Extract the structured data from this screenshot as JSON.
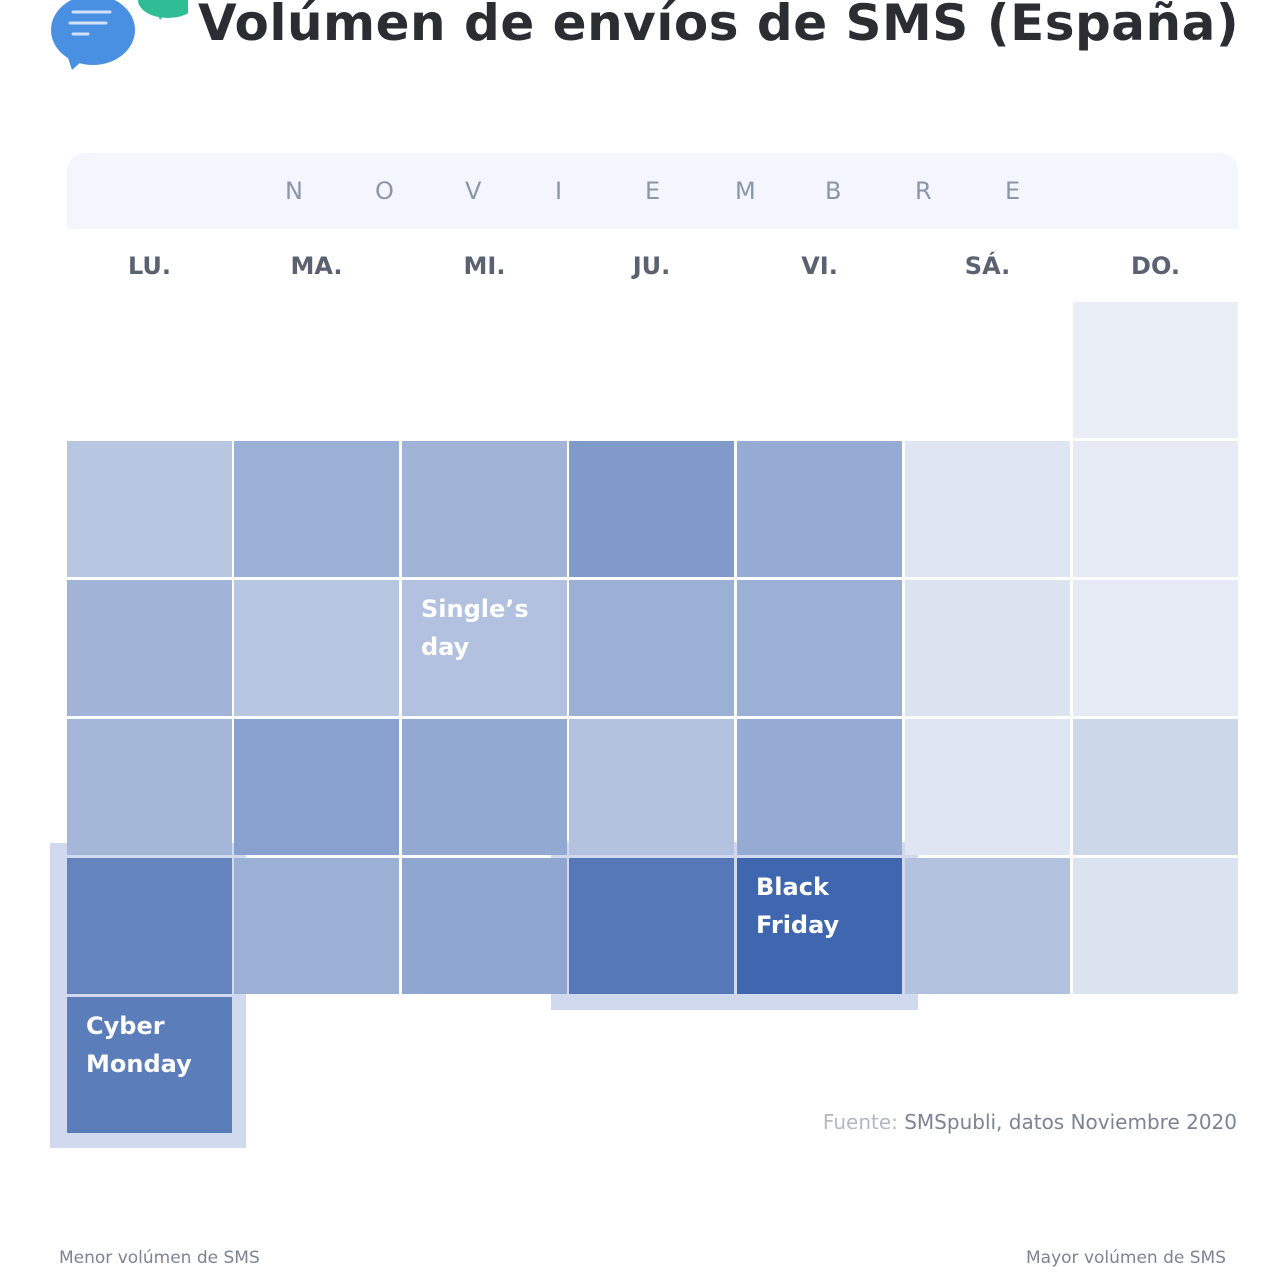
{
  "title": "Volúmen de envíos de SMS (España)",
  "logo": {
    "icon": "chat-bubbles-icon",
    "colors": [
      "#4a90e2",
      "#2ebd94"
    ]
  },
  "chart_data": {
    "type": "heatmap",
    "title": "Volúmen de envíos de SMS (España)",
    "month_label_letters": [
      "N",
      "O",
      "V",
      "I",
      "E",
      "M",
      "B",
      "R",
      "E"
    ],
    "weekdays": [
      "LU.",
      "MA.",
      "MI.",
      "JU.",
      "VI.",
      "SÁ.",
      "DO."
    ],
    "color_scale": {
      "low": "#eef1f8",
      "high": "#3660ab",
      "low_label": "Menor volúmen de SMS",
      "high_label": "Mayor volúmen de SMS"
    },
    "weeks": [
      [
        null,
        null,
        null,
        null,
        null,
        null,
        0.03
      ],
      [
        0.3,
        0.45,
        0.42,
        0.6,
        0.48,
        0.08,
        0.05
      ],
      [
        0.42,
        0.3,
        0.33,
        0.45,
        0.45,
        0.1,
        0.05
      ],
      [
        0.4,
        0.55,
        0.5,
        0.32,
        0.48,
        0.08,
        0.18
      ],
      [
        0.75,
        0.45,
        0.52,
        0.83,
        0.95,
        0.32,
        0.1
      ],
      [
        0.8,
        null,
        null,
        null,
        null,
        null,
        null
      ]
    ],
    "annotations": [
      {
        "week": 2,
        "day": 2,
        "text": [
          "Single’s",
          "day"
        ]
      },
      {
        "week": 4,
        "day": 4,
        "text": [
          "Black",
          "Friday"
        ]
      },
      {
        "week": 5,
        "day": 0,
        "text": [
          "Cyber",
          "Monday"
        ]
      }
    ],
    "source_prefix": "Fuente:",
    "source": "SMSpubli, datos Noviembre 2020"
  }
}
